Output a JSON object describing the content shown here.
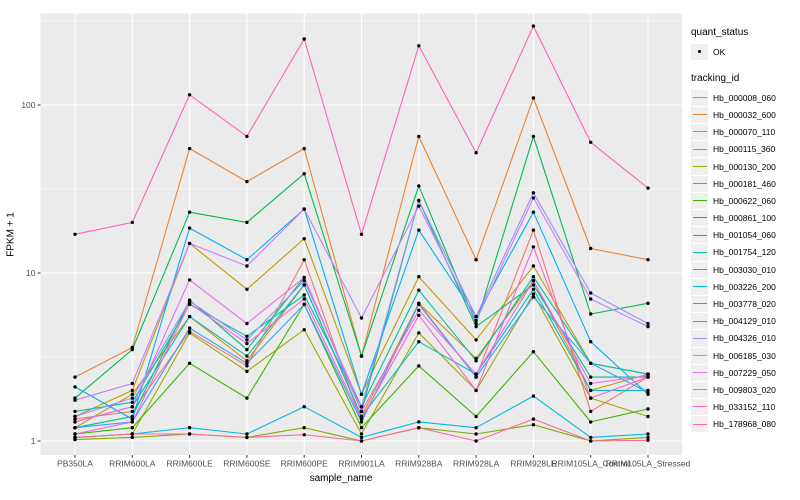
{
  "figure": {
    "panel_background": "#EBEBEB",
    "grid_color": "#FFFFFF",
    "axis_text_color": "#4D4D4D",
    "tick_color": "#333333",
    "point_color": "#000000",
    "legend_key_background": "#EFEFEF"
  },
  "axes": {
    "x_title": "sample_name",
    "y_title": "FPKM + 1",
    "y_tick_labels": [
      "1",
      "10",
      "100"
    ],
    "y_tick_values": [
      1,
      10,
      100
    ],
    "y_minor_values": [
      3.1623,
      31.623,
      316.23
    ]
  },
  "legend": {
    "quant_title": "quant_status",
    "quant_items": [
      {
        "label": "OK",
        "symbol": "point"
      }
    ],
    "tracking_title": "tracking_id"
  },
  "chart_data": {
    "type": "line",
    "title": "",
    "xlabel": "sample_name",
    "ylabel": "FPKM + 1",
    "y_scale": "log10",
    "ylim": [
      0.83,
      350
    ],
    "grid": true,
    "legend_position": "right",
    "x_categories": [
      "PB350LA",
      "RRIM600LA",
      "RRIM600LE",
      "RRIM600SE",
      "RRIM600PE",
      "RRIM901LA",
      "RRIM928BA",
      "RRIM928LA",
      "RRIM928LE",
      "RRIM105LA_Control",
      "RRIM105LA_Stressed"
    ],
    "series": [
      {
        "name": "Hb_000008_060",
        "color": "#F8766D",
        "values": [
          1.35,
          1.5,
          4.5,
          2.8,
          12,
          1.3,
          6.5,
          2.4,
          18,
          1.5,
          2.4
        ]
      },
      {
        "name": "Hb_000032_600",
        "color": "#EA8331",
        "values": [
          2.4,
          3.6,
          55,
          35,
          55,
          3.2,
          65,
          12,
          110,
          14,
          12
        ]
      },
      {
        "name": "Hb_000070_110",
        "color": "#D89000",
        "values": [
          1.2,
          1.9,
          5.5,
          3.0,
          8.5,
          1.4,
          6.6,
          3.1,
          9.0,
          2.0,
          2.5
        ]
      },
      {
        "name": "Hb_000115_360",
        "color": "#C09B00",
        "values": [
          1.4,
          2.0,
          15,
          8.0,
          16,
          1.9,
          9.5,
          4.0,
          11,
          2.9,
          2.5
        ]
      },
      {
        "name": "Hb_000130_200",
        "color": "#A3A500",
        "values": [
          1.05,
          1.1,
          4.4,
          2.6,
          4.6,
          1.1,
          4.4,
          2.0,
          7.5,
          1.8,
          1.4
        ]
      },
      {
        "name": "Hb_000181_460",
        "color": "#7CAE00",
        "values": [
          1.02,
          1.05,
          1.1,
          1.05,
          1.2,
          1.0,
          1.2,
          1.1,
          1.25,
          1.0,
          1.05
        ]
      },
      {
        "name": "Hb_000622_060",
        "color": "#39B600",
        "values": [
          1.1,
          1.2,
          2.9,
          1.8,
          6.5,
          1.2,
          2.8,
          1.4,
          3.4,
          1.3,
          1.55
        ]
      },
      {
        "name": "Hb_000861_100",
        "color": "#00BB4E",
        "values": [
          1.8,
          3.5,
          23,
          20,
          39,
          3.2,
          33,
          5.0,
          65,
          5.7,
          6.6
        ]
      },
      {
        "name": "Hb_001054_060",
        "color": "#00BF7D",
        "values": [
          1.2,
          1.4,
          6.9,
          3.5,
          9.4,
          1.5,
          27,
          4.8,
          8.5,
          2.4,
          2.4
        ]
      },
      {
        "name": "Hb_001754_120",
        "color": "#00C1A3",
        "values": [
          1.5,
          1.7,
          6.5,
          4.2,
          7.4,
          1.6,
          7.9,
          3.0,
          9.5,
          2.9,
          2.5
        ]
      },
      {
        "name": "Hb_003030_010",
        "color": "#00BFC4",
        "values": [
          1.3,
          1.6,
          5.5,
          3.2,
          8.5,
          1.4,
          3.9,
          2.5,
          8.0,
          2.0,
          2.0
        ]
      },
      {
        "name": "Hb_003226_200",
        "color": "#00BAE0",
        "values": [
          1.05,
          1.1,
          1.2,
          1.1,
          1.6,
          1.05,
          1.3,
          1.2,
          1.85,
          1.05,
          1.1
        ]
      },
      {
        "name": "Hb_003778_020",
        "color": "#00B0F6",
        "values": [
          2.1,
          1.35,
          18.5,
          12,
          24,
          1.9,
          18,
          5.5,
          23,
          3.9,
          1.9
        ]
      },
      {
        "name": "Hb_004129_010",
        "color": "#35A2FF",
        "values": [
          1.2,
          1.3,
          4.7,
          2.9,
          6.5,
          1.3,
          6.6,
          2.4,
          7.2,
          2.9,
          1.95
        ]
      },
      {
        "name": "Hb_004326_010",
        "color": "#9590FF",
        "values": [
          1.4,
          1.8,
          6.8,
          4.0,
          9.0,
          1.6,
          27,
          5.5,
          30,
          7.6,
          5.0
        ]
      },
      {
        "name": "Hb_006185_030",
        "color": "#C77CFF",
        "values": [
          1.75,
          2.2,
          15,
          11,
          24,
          5.4,
          25,
          5.2,
          28,
          7.0,
          4.8
        ]
      },
      {
        "name": "Hb_007229_050",
        "color": "#E76BF3",
        "values": [
          1.3,
          1.6,
          9.1,
          5.0,
          9.4,
          1.5,
          6.0,
          2.5,
          9.0,
          2.2,
          2.45
        ]
      },
      {
        "name": "Hb_009803_020",
        "color": "#FA62DB",
        "values": [
          1.1,
          1.3,
          6.6,
          3.8,
          7.0,
          1.35,
          5.6,
          2.0,
          14.3,
          1.8,
          2.4
        ]
      },
      {
        "name": "Hb_033152_110",
        "color": "#FF62BC",
        "values": [
          17,
          20,
          115,
          65,
          247,
          17,
          225,
          52,
          295,
          60,
          32
        ]
      },
      {
        "name": "Hb_178968_080",
        "color": "#FF6A98",
        "values": [
          1.05,
          1.1,
          1.1,
          1.05,
          1.09,
          1.0,
          1.2,
          1.0,
          1.35,
          1.0,
          1.01
        ]
      }
    ]
  }
}
